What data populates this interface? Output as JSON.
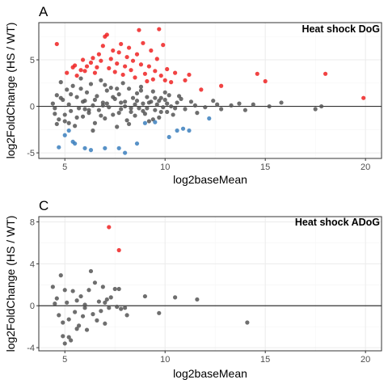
{
  "chart_data": [
    {
      "type": "scatter",
      "panel_label": "A",
      "title": "Heat shock DoG",
      "xlabel": "log2baseMean",
      "ylabel": "log2FoldChange (HS / WT)",
      "xlim": [
        3.7,
        20.8
      ],
      "ylim": [
        -5.6,
        9.0
      ],
      "xticks": [
        5,
        10,
        15,
        20
      ],
      "yticks": [
        -5,
        0,
        5
      ],
      "grid": true,
      "reference_line_y": 0,
      "colors": {
        "up": "#ee2222",
        "down": "#3b7fbd",
        "not_significant": "#555555",
        "reference_line": "#333333",
        "grid": "#ebebeb",
        "border": "#333333"
      },
      "series": [
        {
          "group": "up",
          "points": [
            [
              4.6,
              6.7
            ],
            [
              5.1,
              3.6
            ],
            [
              5.4,
              4.2
            ],
            [
              5.5,
              4.4
            ],
            [
              5.6,
              3.3
            ],
            [
              5.8,
              3.9
            ],
            [
              5.9,
              5.0
            ],
            [
              6.0,
              3.8
            ],
            [
              6.1,
              4.3
            ],
            [
              6.3,
              4.7
            ],
            [
              6.4,
              5.2
            ],
            [
              6.5,
              3.6
            ],
            [
              6.6,
              4.2
            ],
            [
              6.7,
              5.6
            ],
            [
              6.8,
              4.9
            ],
            [
              6.9,
              6.5
            ],
            [
              7.0,
              7.5
            ],
            [
              7.1,
              7.7
            ],
            [
              7.2,
              4.1
            ],
            [
              7.3,
              5.1
            ],
            [
              7.4,
              6.0
            ],
            [
              7.5,
              3.7
            ],
            [
              7.6,
              4.6
            ],
            [
              7.7,
              5.8
            ],
            [
              7.8,
              6.7
            ],
            [
              7.9,
              3.4
            ],
            [
              8.0,
              4.3
            ],
            [
              8.1,
              5.3
            ],
            [
              8.2,
              6.3
            ],
            [
              8.3,
              3.9
            ],
            [
              8.4,
              4.9
            ],
            [
              8.5,
              3.1
            ],
            [
              8.6,
              5.6
            ],
            [
              8.7,
              8.2
            ],
            [
              8.8,
              4.5
            ],
            [
              8.9,
              6.8
            ],
            [
              9.0,
              3.5
            ],
            [
              9.1,
              2.7
            ],
            [
              9.2,
              4.3
            ],
            [
              9.3,
              6.0
            ],
            [
              9.4,
              2.9
            ],
            [
              9.5,
              3.8
            ],
            [
              9.6,
              5.1
            ],
            [
              9.7,
              8.3
            ],
            [
              9.8,
              3.3
            ],
            [
              9.9,
              6.6
            ],
            [
              10.0,
              2.8
            ],
            [
              10.1,
              4.0
            ],
            [
              10.3,
              2.6
            ],
            [
              10.5,
              3.6
            ],
            [
              11.0,
              2.8
            ],
            [
              11.2,
              3.4
            ],
            [
              11.8,
              1.8
            ],
            [
              12.8,
              2.2
            ],
            [
              14.6,
              3.5
            ],
            [
              15.0,
              2.7
            ],
            [
              18.0,
              3.5
            ],
            [
              19.9,
              0.9
            ]
          ]
        },
        {
          "group": "down",
          "points": [
            [
              4.7,
              -4.4
            ],
            [
              5.0,
              -3.1
            ],
            [
              5.2,
              -2.6
            ],
            [
              5.4,
              -3.8
            ],
            [
              5.5,
              -4.0
            ],
            [
              6.0,
              -4.5
            ],
            [
              6.3,
              -4.7
            ],
            [
              7.0,
              -4.5
            ],
            [
              7.7,
              -4.5
            ],
            [
              8.0,
              -5.0
            ],
            [
              8.6,
              -4.0
            ],
            [
              9.0,
              -1.8
            ],
            [
              9.5,
              -1.7
            ],
            [
              10.2,
              -3.3
            ],
            [
              10.6,
              -2.6
            ],
            [
              10.9,
              -2.4
            ],
            [
              11.2,
              -2.6
            ],
            [
              12.2,
              -1.3
            ]
          ]
        },
        {
          "group": "not_significant",
          "points": [
            [
              4.4,
              0.3
            ],
            [
              4.5,
              -0.8
            ],
            [
              4.6,
              1.2
            ],
            [
              4.7,
              -1.4
            ],
            [
              4.8,
              2.6
            ],
            [
              4.9,
              0.7
            ],
            [
              5.0,
              -1.6
            ],
            [
              5.1,
              1.8
            ],
            [
              5.2,
              0.2
            ],
            [
              5.3,
              -0.5
            ],
            [
              5.4,
              2.2
            ],
            [
              5.5,
              -2.1
            ],
            [
              5.6,
              1.0
            ],
            [
              5.7,
              -0.2
            ],
            [
              5.8,
              3.0
            ],
            [
              5.9,
              -1.1
            ],
            [
              6.0,
              0.6
            ],
            [
              6.1,
              1.5
            ],
            [
              6.2,
              -0.7
            ],
            [
              6.3,
              2.4
            ],
            [
              6.4,
              0.1
            ],
            [
              6.5,
              -1.8
            ],
            [
              6.6,
              1.1
            ],
            [
              6.7,
              -0.4
            ],
            [
              6.8,
              2.8
            ],
            [
              6.9,
              0.4
            ],
            [
              7.0,
              -1.3
            ],
            [
              7.1,
              1.7
            ],
            [
              7.2,
              -0.1
            ],
            [
              7.3,
              2.0
            ],
            [
              7.4,
              -0.9
            ],
            [
              7.5,
              0.8
            ],
            [
              7.6,
              -2.2
            ],
            [
              7.7,
              1.3
            ],
            [
              7.8,
              -0.3
            ],
            [
              7.9,
              2.5
            ],
            [
              8.0,
              0.0
            ],
            [
              8.1,
              -1.5
            ],
            [
              8.2,
              1.9
            ],
            [
              8.3,
              -0.6
            ],
            [
              8.4,
              0.9
            ],
            [
              8.5,
              -1.0
            ],
            [
              8.6,
              1.4
            ],
            [
              8.7,
              -0.2
            ],
            [
              8.8,
              2.1
            ],
            [
              8.9,
              0.3
            ],
            [
              9.0,
              -0.8
            ],
            [
              9.1,
              1.0
            ],
            [
              9.2,
              -1.6
            ],
            [
              9.3,
              0.5
            ],
            [
              9.4,
              1.6
            ],
            [
              9.5,
              -0.4
            ],
            [
              9.6,
              0.2
            ],
            [
              9.7,
              -1.2
            ],
            [
              9.8,
              0.9
            ],
            [
              9.9,
              -0.1
            ],
            [
              10.0,
              0.7
            ],
            [
              10.1,
              -0.6
            ],
            [
              10.2,
              1.2
            ],
            [
              10.3,
              0.0
            ],
            [
              10.4,
              -0.9
            ],
            [
              10.6,
              0.4
            ],
            [
              10.8,
              0.8
            ],
            [
              11.0,
              -0.3
            ],
            [
              11.3,
              0.5
            ],
            [
              11.5,
              0.1
            ],
            [
              12.0,
              -0.1
            ],
            [
              12.4,
              0.6
            ],
            [
              12.8,
              -0.3
            ],
            [
              13.3,
              0.1
            ],
            [
              13.7,
              0.3
            ],
            [
              14.0,
              -0.4
            ],
            [
              14.4,
              0.2
            ],
            [
              15.2,
              0.0
            ],
            [
              15.8,
              0.4
            ],
            [
              17.5,
              -0.3
            ],
            [
              17.8,
              0.0
            ],
            [
              4.5,
              -0.2
            ],
            [
              4.8,
              0.9
            ],
            [
              5.0,
              -0.9
            ],
            [
              5.3,
              1.3
            ],
            [
              5.6,
              -1.2
            ],
            [
              5.9,
              0.5
            ],
            [
              6.2,
              -0.4
            ],
            [
              6.5,
              0.7
            ],
            [
              6.8,
              -1.0
            ],
            [
              7.1,
              0.3
            ],
            [
              7.4,
              1.0
            ],
            [
              7.7,
              -0.7
            ],
            [
              8.0,
              0.5
            ],
            [
              8.3,
              -0.2
            ],
            [
              8.6,
              0.6
            ],
            [
              8.9,
              -0.5
            ],
            [
              9.2,
              0.4
            ],
            [
              9.5,
              0.9
            ],
            [
              9.8,
              -0.6
            ],
            [
              10.1,
              0.3
            ],
            [
              10.5,
              -0.2
            ],
            [
              4.6,
              -1.9
            ],
            [
              5.2,
              -1.8
            ],
            [
              5.8,
              1.9
            ],
            [
              6.4,
              -2.6
            ],
            [
              7.0,
              2.3
            ],
            [
              7.6,
              1.9
            ],
            [
              8.2,
              -1.9
            ],
            [
              8.8,
              1.7
            ],
            [
              9.4,
              -1.4
            ],
            [
              10.0,
              1.5
            ],
            [
              10.7,
              1.1
            ],
            [
              6.0,
              -0.3
            ],
            [
              6.9,
              0.1
            ],
            [
              7.8,
              0.4
            ],
            [
              8.5,
              0.2
            ],
            [
              9.1,
              -0.2
            ],
            [
              9.7,
              0.6
            ],
            [
              11.6,
              -0.7
            ],
            [
              12.6,
              0.2
            ]
          ]
        }
      ]
    },
    {
      "type": "scatter",
      "panel_label": "C",
      "title": "Heat shock ADoG",
      "xlabel": "log2baseMean",
      "ylabel": "log2FoldChange (HS / WT)",
      "xlim": [
        3.7,
        20.8
      ],
      "ylim": [
        -4.3,
        8.5
      ],
      "xticks": [
        5,
        10,
        15,
        20
      ],
      "yticks": [
        -4,
        0,
        4,
        8
      ],
      "grid": true,
      "reference_line_y": 0,
      "colors": {
        "up": "#ee2222",
        "not_significant": "#555555",
        "reference_line": "#333333",
        "grid": "#ebebeb",
        "border": "#333333"
      },
      "series": [
        {
          "group": "up",
          "points": [
            [
              7.2,
              7.5
            ],
            [
              7.7,
              5.3
            ]
          ]
        },
        {
          "group": "not_significant",
          "points": [
            [
              4.4,
              1.8
            ],
            [
              4.5,
              0.2
            ],
            [
              4.6,
              0.7
            ],
            [
              4.7,
              -0.9
            ],
            [
              4.8,
              2.9
            ],
            [
              4.9,
              -1.6
            ],
            [
              4.9,
              -2.9
            ],
            [
              5.0,
              -3.6
            ],
            [
              5.1,
              0.3
            ],
            [
              5.2,
              -1.3
            ],
            [
              5.2,
              -3.0
            ],
            [
              5.3,
              -3.3
            ],
            [
              5.4,
              1.4
            ],
            [
              5.5,
              -0.6
            ],
            [
              5.6,
              -2.2
            ],
            [
              5.6,
              0.5
            ],
            [
              5.7,
              -1.9
            ],
            [
              5.8,
              0.9
            ],
            [
              5.9,
              -1.0
            ],
            [
              6.0,
              0.1
            ],
            [
              6.1,
              -2.3
            ],
            [
              6.2,
              1.5
            ],
            [
              6.3,
              3.3
            ],
            [
              6.4,
              -0.8
            ],
            [
              6.5,
              2.2
            ],
            [
              6.6,
              -1.4
            ],
            [
              6.7,
              0.4
            ],
            [
              6.8,
              -0.5
            ],
            [
              6.9,
              1.8
            ],
            [
              7.0,
              -1.7
            ],
            [
              7.1,
              0.6
            ],
            [
              7.2,
              -0.2
            ],
            [
              7.3,
              0.8
            ],
            [
              7.5,
              1.6
            ],
            [
              7.6,
              -0.1
            ],
            [
              7.7,
              1.6
            ],
            [
              7.8,
              -0.3
            ],
            [
              8.0,
              -0.2
            ],
            [
              8.1,
              -0.9
            ],
            [
              9.0,
              0.9
            ],
            [
              9.7,
              -0.7
            ],
            [
              10.5,
              0.8
            ],
            [
              11.6,
              0.6
            ],
            [
              14.1,
              -1.6
            ],
            [
              5.0,
              1.5
            ],
            [
              6.0,
              -0.2
            ],
            [
              7.0,
              0.3
            ]
          ]
        }
      ]
    }
  ]
}
